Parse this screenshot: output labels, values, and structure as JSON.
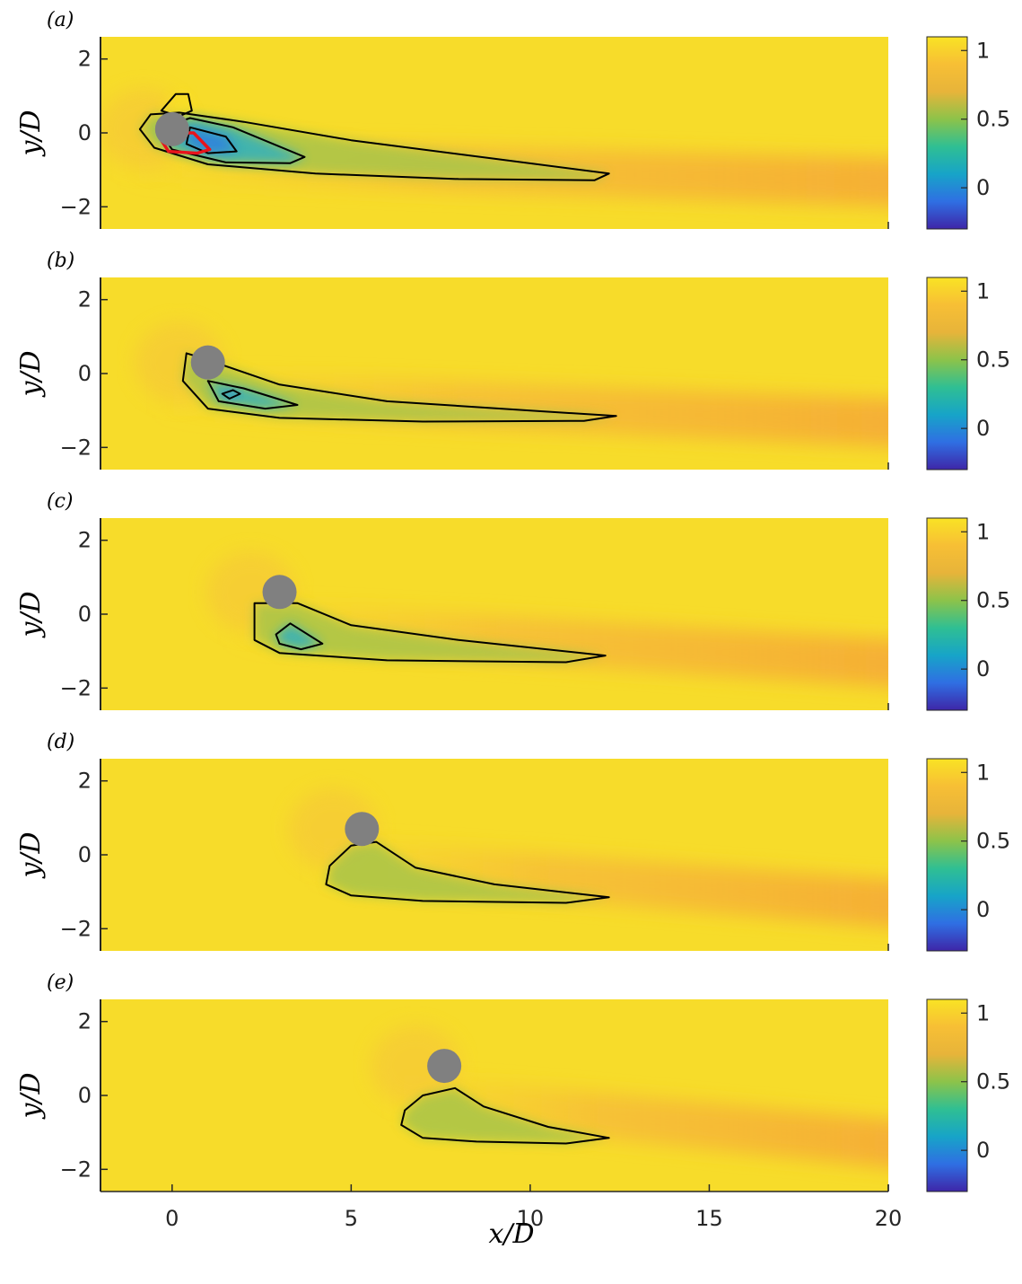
{
  "chart_data": {
    "type": "heatmap",
    "xlabel": "x/D",
    "ylabel": "y/D",
    "xlim": [
      -2,
      20
    ],
    "ylim": [
      -2.6,
      2.6
    ],
    "xticks": [
      "0",
      "5",
      "10",
      "15",
      "20"
    ],
    "yticks": [
      "2",
      "0",
      "−2"
    ],
    "colorbar": {
      "range": [
        -0.3,
        1.1
      ],
      "ticks": [
        "1",
        "0.5",
        "0"
      ]
    },
    "colormap": [
      "#3e26a8",
      "#2f6fe3",
      "#17a4c8",
      "#2fbf93",
      "#8cc34a",
      "#e7b43a",
      "#f7bf35",
      "#f9e324"
    ],
    "panels": [
      {
        "label": "(a)",
        "cylinder": {
          "x": 0.0,
          "y": 0.1
        },
        "contours": [
          {
            "level": "outer",
            "points": [
              [
                -0.9,
                0.1
              ],
              [
                -0.6,
                0.5
              ],
              [
                0.2,
                0.55
              ],
              [
                2.0,
                0.3
              ],
              [
                5.0,
                -0.2
              ],
              [
                9.0,
                -0.7
              ],
              [
                12.2,
                -1.1
              ],
              [
                11.8,
                -1.28
              ],
              [
                8.0,
                -1.25
              ],
              [
                4.0,
                -1.1
              ],
              [
                1.0,
                -0.85
              ],
              [
                -0.5,
                -0.4
              ],
              [
                -0.9,
                0.1
              ]
            ]
          },
          {
            "level": "inner",
            "points": [
              [
                -0.4,
                0.1
              ],
              [
                0.5,
                0.4
              ],
              [
                1.7,
                0.15
              ],
              [
                3.7,
                -0.65
              ],
              [
                3.3,
                -0.82
              ],
              [
                1.5,
                -0.8
              ],
              [
                0.0,
                -0.45
              ],
              [
                -0.4,
                0.1
              ]
            ]
          },
          {
            "level": "inner2",
            "points": [
              [
                0.5,
                0.15
              ],
              [
                1.5,
                -0.1
              ],
              [
                1.8,
                -0.5
              ],
              [
                1.0,
                -0.55
              ],
              [
                0.4,
                -0.3
              ],
              [
                0.5,
                0.15
              ]
            ]
          },
          {
            "level": "top",
            "points": [
              [
                -0.3,
                0.6
              ],
              [
                0.1,
                1.05
              ],
              [
                0.45,
                1.05
              ],
              [
                0.55,
                0.6
              ],
              [
                0.2,
                0.45
              ],
              [
                -0.3,
                0.6
              ]
            ]
          }
        ],
        "red_contour": [
          [
            -0.3,
            0.0
          ],
          [
            0.6,
            0.0
          ],
          [
            1.05,
            -0.45
          ],
          [
            0.7,
            -0.55
          ],
          [
            -0.1,
            -0.5
          ],
          [
            -0.3,
            -0.2
          ]
        ]
      },
      {
        "label": "(b)",
        "cylinder": {
          "x": 1.0,
          "y": 0.3
        },
        "contours": [
          {
            "level": "outer",
            "points": [
              [
                0.4,
                0.55
              ],
              [
                0.9,
                0.4
              ],
              [
                3.0,
                -0.3
              ],
              [
                6.0,
                -0.75
              ],
              [
                10.0,
                -1.0
              ],
              [
                12.4,
                -1.15
              ],
              [
                11.5,
                -1.28
              ],
              [
                7.0,
                -1.3
              ],
              [
                3.0,
                -1.2
              ],
              [
                1.0,
                -0.95
              ],
              [
                0.3,
                -0.2
              ],
              [
                0.4,
                0.55
              ]
            ]
          },
          {
            "level": "inner",
            "points": [
              [
                1.0,
                -0.2
              ],
              [
                2.0,
                -0.4
              ],
              [
                3.5,
                -0.85
              ],
              [
                2.6,
                -0.95
              ],
              [
                1.3,
                -0.75
              ],
              [
                1.0,
                -0.2
              ]
            ]
          },
          {
            "level": "inner2",
            "points": [
              [
                1.4,
                -0.55
              ],
              [
                1.7,
                -0.45
              ],
              [
                1.9,
                -0.55
              ],
              [
                1.6,
                -0.68
              ],
              [
                1.4,
                -0.55
              ]
            ]
          }
        ]
      },
      {
        "label": "(c)",
        "cylinder": {
          "x": 3.0,
          "y": 0.6
        },
        "contours": [
          {
            "level": "outer",
            "points": [
              [
                2.3,
                0.3
              ],
              [
                3.5,
                0.3
              ],
              [
                5.0,
                -0.3
              ],
              [
                8.0,
                -0.7
              ],
              [
                12.1,
                -1.12
              ],
              [
                11.0,
                -1.3
              ],
              [
                6.0,
                -1.25
              ],
              [
                3.0,
                -1.05
              ],
              [
                2.3,
                -0.7
              ],
              [
                2.3,
                0.3
              ]
            ]
          },
          {
            "level": "inner",
            "points": [
              [
                2.9,
                -0.55
              ],
              [
                3.3,
                -0.25
              ],
              [
                4.2,
                -0.8
              ],
              [
                3.6,
                -0.95
              ],
              [
                3.0,
                -0.8
              ],
              [
                2.9,
                -0.55
              ]
            ]
          }
        ]
      },
      {
        "label": "(d)",
        "cylinder": {
          "x": 5.3,
          "y": 0.7
        },
        "contours": [
          {
            "level": "outer",
            "points": [
              [
                4.4,
                -0.3
              ],
              [
                5.0,
                0.25
              ],
              [
                5.7,
                0.35
              ],
              [
                6.8,
                -0.35
              ],
              [
                9.0,
                -0.8
              ],
              [
                12.2,
                -1.15
              ],
              [
                11.0,
                -1.3
              ],
              [
                7.0,
                -1.25
              ],
              [
                5.0,
                -1.1
              ],
              [
                4.3,
                -0.8
              ],
              [
                4.4,
                -0.3
              ]
            ]
          }
        ]
      },
      {
        "label": "(e)",
        "cylinder": {
          "x": 7.6,
          "y": 0.8
        },
        "contours": [
          {
            "level": "outer",
            "points": [
              [
                6.5,
                -0.4
              ],
              [
                7.0,
                0.0
              ],
              [
                7.9,
                0.2
              ],
              [
                8.7,
                -0.3
              ],
              [
                10.5,
                -0.85
              ],
              [
                12.2,
                -1.15
              ],
              [
                11.0,
                -1.3
              ],
              [
                8.5,
                -1.25
              ],
              [
                7.0,
                -1.15
              ],
              [
                6.4,
                -0.8
              ],
              [
                6.5,
                -0.4
              ]
            ]
          }
        ]
      }
    ]
  }
}
